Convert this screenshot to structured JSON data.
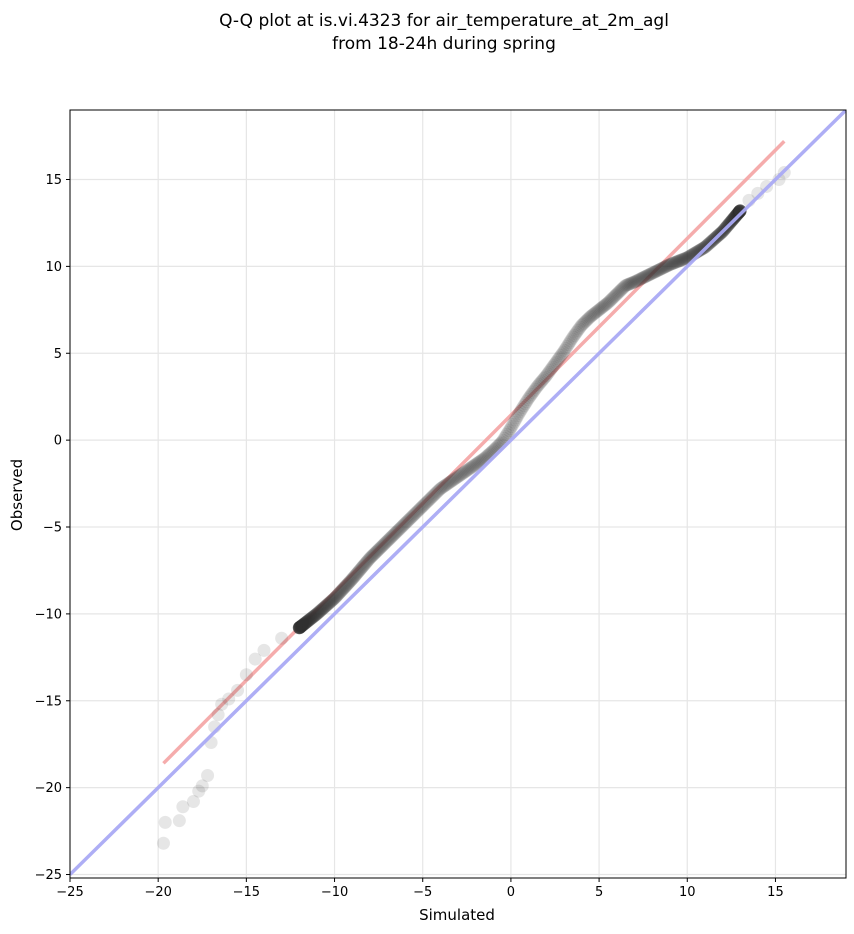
{
  "chart_data": {
    "type": "scatter",
    "title": [
      "Q-Q plot at is.vi.4323 for air_temperature_at_2m_agl",
      "from 18-24h during spring"
    ],
    "xlabel": "Simulated",
    "ylabel": "Observed",
    "xlim": [
      -25,
      19
    ],
    "ylim": [
      -25.2,
      19
    ],
    "xticks": [
      -25,
      -20,
      -15,
      -10,
      -5,
      0,
      5,
      10,
      15
    ],
    "yticks": [
      -25,
      -20,
      -15,
      -10,
      -5,
      0,
      5,
      10,
      15
    ],
    "xtick_labels": [
      "−25",
      "−20",
      "−15",
      "−10",
      "−5",
      "0",
      "5",
      "10",
      "15"
    ],
    "ytick_labels": [
      "−25",
      "−20",
      "−15",
      "−10",
      "−5",
      "0",
      "5",
      "10",
      "15"
    ],
    "grid": true,
    "colors": {
      "points": "#333333",
      "identity_line": "#aaaaf5",
      "fit_line": "#f5a8a8",
      "grid": "#e6e6e6"
    },
    "series": [
      {
        "kind": "scatter",
        "curve": [
          [
            -19.7,
            -23.2
          ],
          [
            -19.6,
            -22
          ],
          [
            -18.8,
            -21.9
          ],
          [
            -18.6,
            -21.1
          ],
          [
            -18,
            -20.8
          ],
          [
            -17.7,
            -20.2
          ],
          [
            -17.5,
            -19.9
          ],
          [
            -17.2,
            -19.3
          ],
          [
            -17,
            -17.4
          ],
          [
            -16.8,
            -16.5
          ],
          [
            -16.6,
            -15.8
          ],
          [
            -16.4,
            -15.2
          ],
          [
            -16,
            -14.9
          ],
          [
            -15.5,
            -14.4
          ],
          [
            -15,
            -13.5
          ],
          [
            -14.5,
            -12.6
          ],
          [
            -14,
            -12.1
          ],
          [
            -13,
            -11.4
          ],
          [
            -12,
            -10.8
          ],
          [
            -11,
            -10
          ],
          [
            -10,
            -9.1
          ],
          [
            -9,
            -8
          ],
          [
            -8,
            -6.8
          ],
          [
            -7,
            -5.8
          ],
          [
            -6,
            -4.8
          ],
          [
            -5,
            -3.8
          ],
          [
            -4,
            -2.8
          ],
          [
            -3,
            -2.1
          ],
          [
            -2,
            -1.4
          ],
          [
            -1.5,
            -1.05
          ],
          [
            -1,
            -0.6
          ],
          [
            -0.5,
            -0.1
          ],
          [
            0,
            0.7
          ],
          [
            0.5,
            1.6
          ],
          [
            1,
            2.4
          ],
          [
            1.5,
            3.1
          ],
          [
            2,
            3.7
          ],
          [
            2.5,
            4.4
          ],
          [
            3,
            5.1
          ],
          [
            3.5,
            5.9
          ],
          [
            4,
            6.6
          ],
          [
            4.5,
            7.1
          ],
          [
            5,
            7.5
          ],
          [
            5.5,
            7.9
          ],
          [
            6,
            8.4
          ],
          [
            6.5,
            8.9
          ],
          [
            7,
            9.1
          ],
          [
            8,
            9.6
          ],
          [
            9,
            10.1
          ],
          [
            10,
            10.5
          ],
          [
            11,
            11.1
          ],
          [
            12,
            12
          ],
          [
            12.5,
            12.6
          ],
          [
            13,
            13.2
          ],
          [
            13.5,
            13.8
          ],
          [
            14,
            14.2
          ],
          [
            14.5,
            14.6
          ],
          [
            15.2,
            15
          ],
          [
            15.5,
            15.4
          ]
        ],
        "count": 560
      },
      {
        "kind": "line",
        "x": [
          -25,
          19
        ],
        "y": [
          -25,
          19
        ]
      },
      {
        "kind": "line",
        "x": [
          -19.7,
          15.5
        ],
        "y": [
          -18.6,
          17.2
        ]
      }
    ]
  }
}
